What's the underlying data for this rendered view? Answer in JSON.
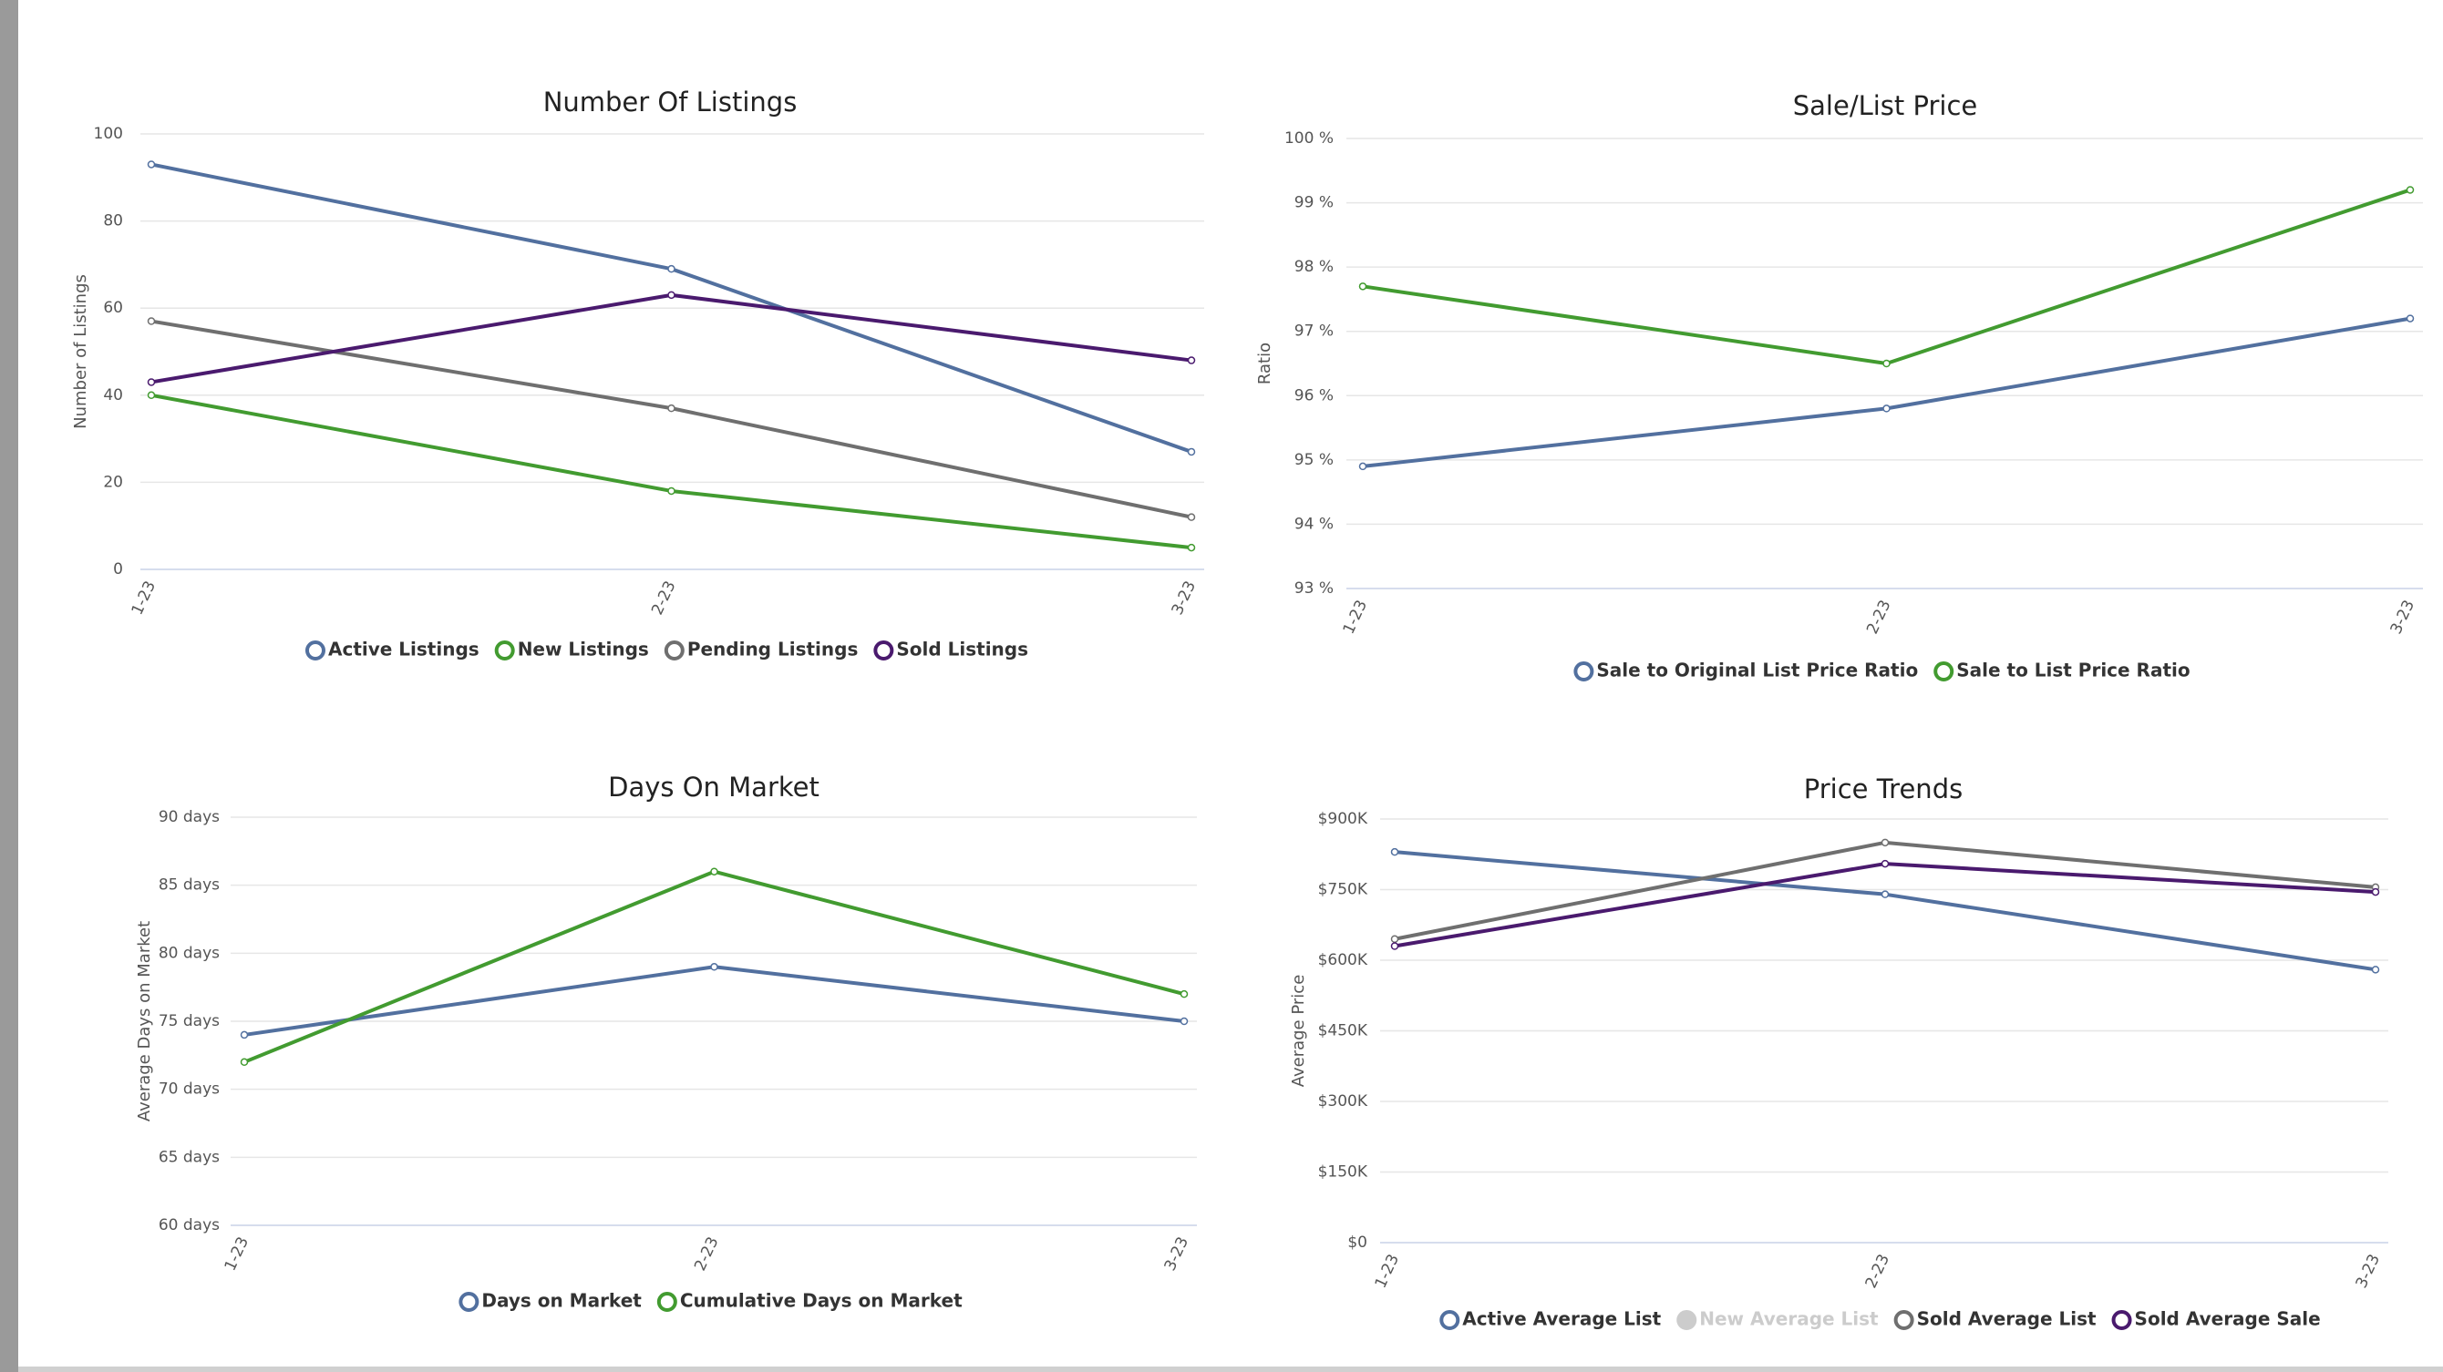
{
  "chart_data": [
    {
      "type": "line",
      "title": "Number Of Listings",
      "y_label": "Number of Listings",
      "categories": [
        "1-23",
        "2-23",
        "3-23"
      ],
      "ylim": [
        0,
        100
      ],
      "yticks": [
        0,
        20,
        40,
        60,
        80,
        100
      ],
      "grid": true,
      "series": [
        {
          "name": "Active Listings",
          "color": "#52709f",
          "values": [
            93,
            69,
            27
          ]
        },
        {
          "name": "New Listings",
          "color": "#429b30",
          "values": [
            40,
            18,
            5
          ]
        },
        {
          "name": "Pending Listings",
          "color": "#6f6f6f",
          "values": [
            57,
            37,
            12
          ]
        },
        {
          "name": "Sold Listings",
          "color": "#4a1a6e",
          "values": [
            43,
            63,
            48
          ]
        }
      ]
    },
    {
      "type": "line",
      "title": "Sale/List Price",
      "y_label": "Ratio",
      "categories": [
        "1-23",
        "2-23",
        "3-23"
      ],
      "ylim": [
        93,
        100
      ],
      "yticks": [
        {
          "value": 93,
          "label": "93 %"
        },
        {
          "value": 94,
          "label": "94 %"
        },
        {
          "value": 95,
          "label": "95 %"
        },
        {
          "value": 96,
          "label": "96 %"
        },
        {
          "value": 97,
          "label": "97 %"
        },
        {
          "value": 98,
          "label": "98 %"
        },
        {
          "value": 99,
          "label": "99 %"
        },
        {
          "value": 100,
          "label": "100 %"
        }
      ],
      "grid": true,
      "series": [
        {
          "name": "Sale to Original List Price Ratio",
          "color": "#52709f",
          "values": [
            94.9,
            95.8,
            97.2
          ]
        },
        {
          "name": "Sale to List Price Ratio",
          "color": "#429b30",
          "values": [
            97.7,
            96.5,
            99.2
          ]
        }
      ]
    },
    {
      "type": "line",
      "title": "Days On Market",
      "y_label": "Average Days on Market",
      "categories": [
        "1-23",
        "2-23",
        "3-23"
      ],
      "ylim": [
        60,
        90
      ],
      "yticks": [
        {
          "value": 60,
          "label": "60 days"
        },
        {
          "value": 65,
          "label": "65 days"
        },
        {
          "value": 70,
          "label": "70 days"
        },
        {
          "value": 75,
          "label": "75 days"
        },
        {
          "value": 80,
          "label": "80 days"
        },
        {
          "value": 85,
          "label": "85 days"
        },
        {
          "value": 90,
          "label": "90 days"
        }
      ],
      "grid": true,
      "series": [
        {
          "name": "Days on Market",
          "color": "#52709f",
          "values": [
            74,
            79,
            75
          ]
        },
        {
          "name": "Cumulative Days on Market",
          "color": "#429b30",
          "values": [
            72,
            86,
            77
          ]
        }
      ]
    },
    {
      "type": "line",
      "title": "Price Trends",
      "y_label": "Average Price",
      "categories": [
        "1-23",
        "2-23",
        "3-23"
      ],
      "ylim": [
        0,
        900000
      ],
      "yticks": [
        {
          "value": 0,
          "label": "$0"
        },
        {
          "value": 150000,
          "label": "$150K"
        },
        {
          "value": 300000,
          "label": "$300K"
        },
        {
          "value": 450000,
          "label": "$450K"
        },
        {
          "value": 600000,
          "label": "$600K"
        },
        {
          "value": 750000,
          "label": "$750K"
        },
        {
          "value": 900000,
          "label": "$900K"
        }
      ],
      "grid": true,
      "series": [
        {
          "name": "Active Average List",
          "color": "#52709f",
          "values": [
            830000,
            740000,
            580000
          ]
        },
        {
          "name": "New Average List",
          "color": "#cccccc",
          "visible": false,
          "values": [
            null,
            null,
            null
          ]
        },
        {
          "name": "Sold Average List",
          "color": "#6f6f6f",
          "values": [
            645000,
            850000,
            755000
          ]
        },
        {
          "name": "Sold Average Sale",
          "color": "#4a1a6e",
          "values": [
            630000,
            805000,
            745000
          ]
        }
      ]
    }
  ]
}
